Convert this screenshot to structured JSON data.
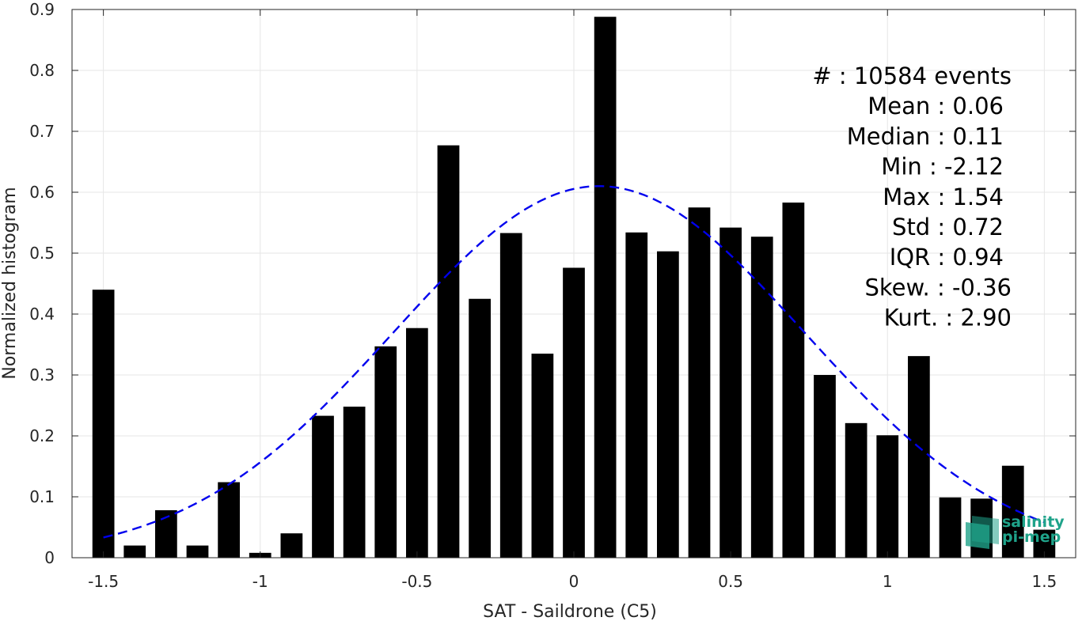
{
  "chart_data": {
    "type": "bar",
    "xlabel": "SAT - Saildrone (C5)",
    "ylabel": "Normalized histogram",
    "xlim": [
      -1.6,
      1.6
    ],
    "ylim": [
      0,
      0.9
    ],
    "xticks": [
      -1.5,
      -1,
      -0.5,
      0,
      0.5,
      1,
      1.5
    ],
    "xtick_labels": [
      "-1.5",
      "-1",
      "-0.5",
      "0",
      "0.5",
      "1",
      "1.5"
    ],
    "yticks": [
      0,
      0.1,
      0.2,
      0.3,
      0.4,
      0.5,
      0.6,
      0.7,
      0.8,
      0.9
    ],
    "ytick_labels": [
      "0",
      "0.1",
      "0.2",
      "0.3",
      "0.4",
      "0.5",
      "0.6",
      "0.7",
      "0.8",
      "0.9"
    ],
    "grid": true,
    "bar_color": "#000000",
    "bins": [
      -1.5,
      -1.4,
      -1.3,
      -1.2,
      -1.1,
      -1.0,
      -0.9,
      -0.8,
      -0.7,
      -0.6,
      -0.5,
      -0.4,
      -0.3,
      -0.2,
      -0.1,
      0.0,
      0.1,
      0.2,
      0.3,
      0.4,
      0.5,
      0.6,
      0.7,
      0.8,
      0.9,
      1.0,
      1.1,
      1.2,
      1.3,
      1.4,
      1.5
    ],
    "values": [
      0.44,
      0.02,
      0.078,
      0.02,
      0.124,
      0.008,
      0.04,
      0.233,
      0.248,
      0.347,
      0.377,
      0.677,
      0.425,
      0.533,
      0.335,
      0.476,
      0.888,
      0.534,
      0.503,
      0.575,
      0.542,
      0.527,
      0.583,
      0.3,
      0.221,
      0.201,
      0.331,
      0.099,
      0.097,
      0.151,
      0.046
    ],
    "fit": {
      "type": "gaussian",
      "color": "#0000ee",
      "style": "dashed",
      "mean": 0.08,
      "std": 0.655,
      "peak": 0.61,
      "x_range": [
        -1.5,
        1.5
      ]
    },
    "stats": [
      "#  : 10584 events",
      "Mean : 0.06",
      "Median : 0.11",
      "Min : -2.12",
      "Max : 1.54",
      "Std : 0.72",
      "IQR : 0.94",
      "Skew. : -0.36",
      "Kurt. : 2.90"
    ]
  },
  "logo": {
    "line1": "salinity",
    "line2": "pi-mep",
    "color": "#1fa38a"
  }
}
